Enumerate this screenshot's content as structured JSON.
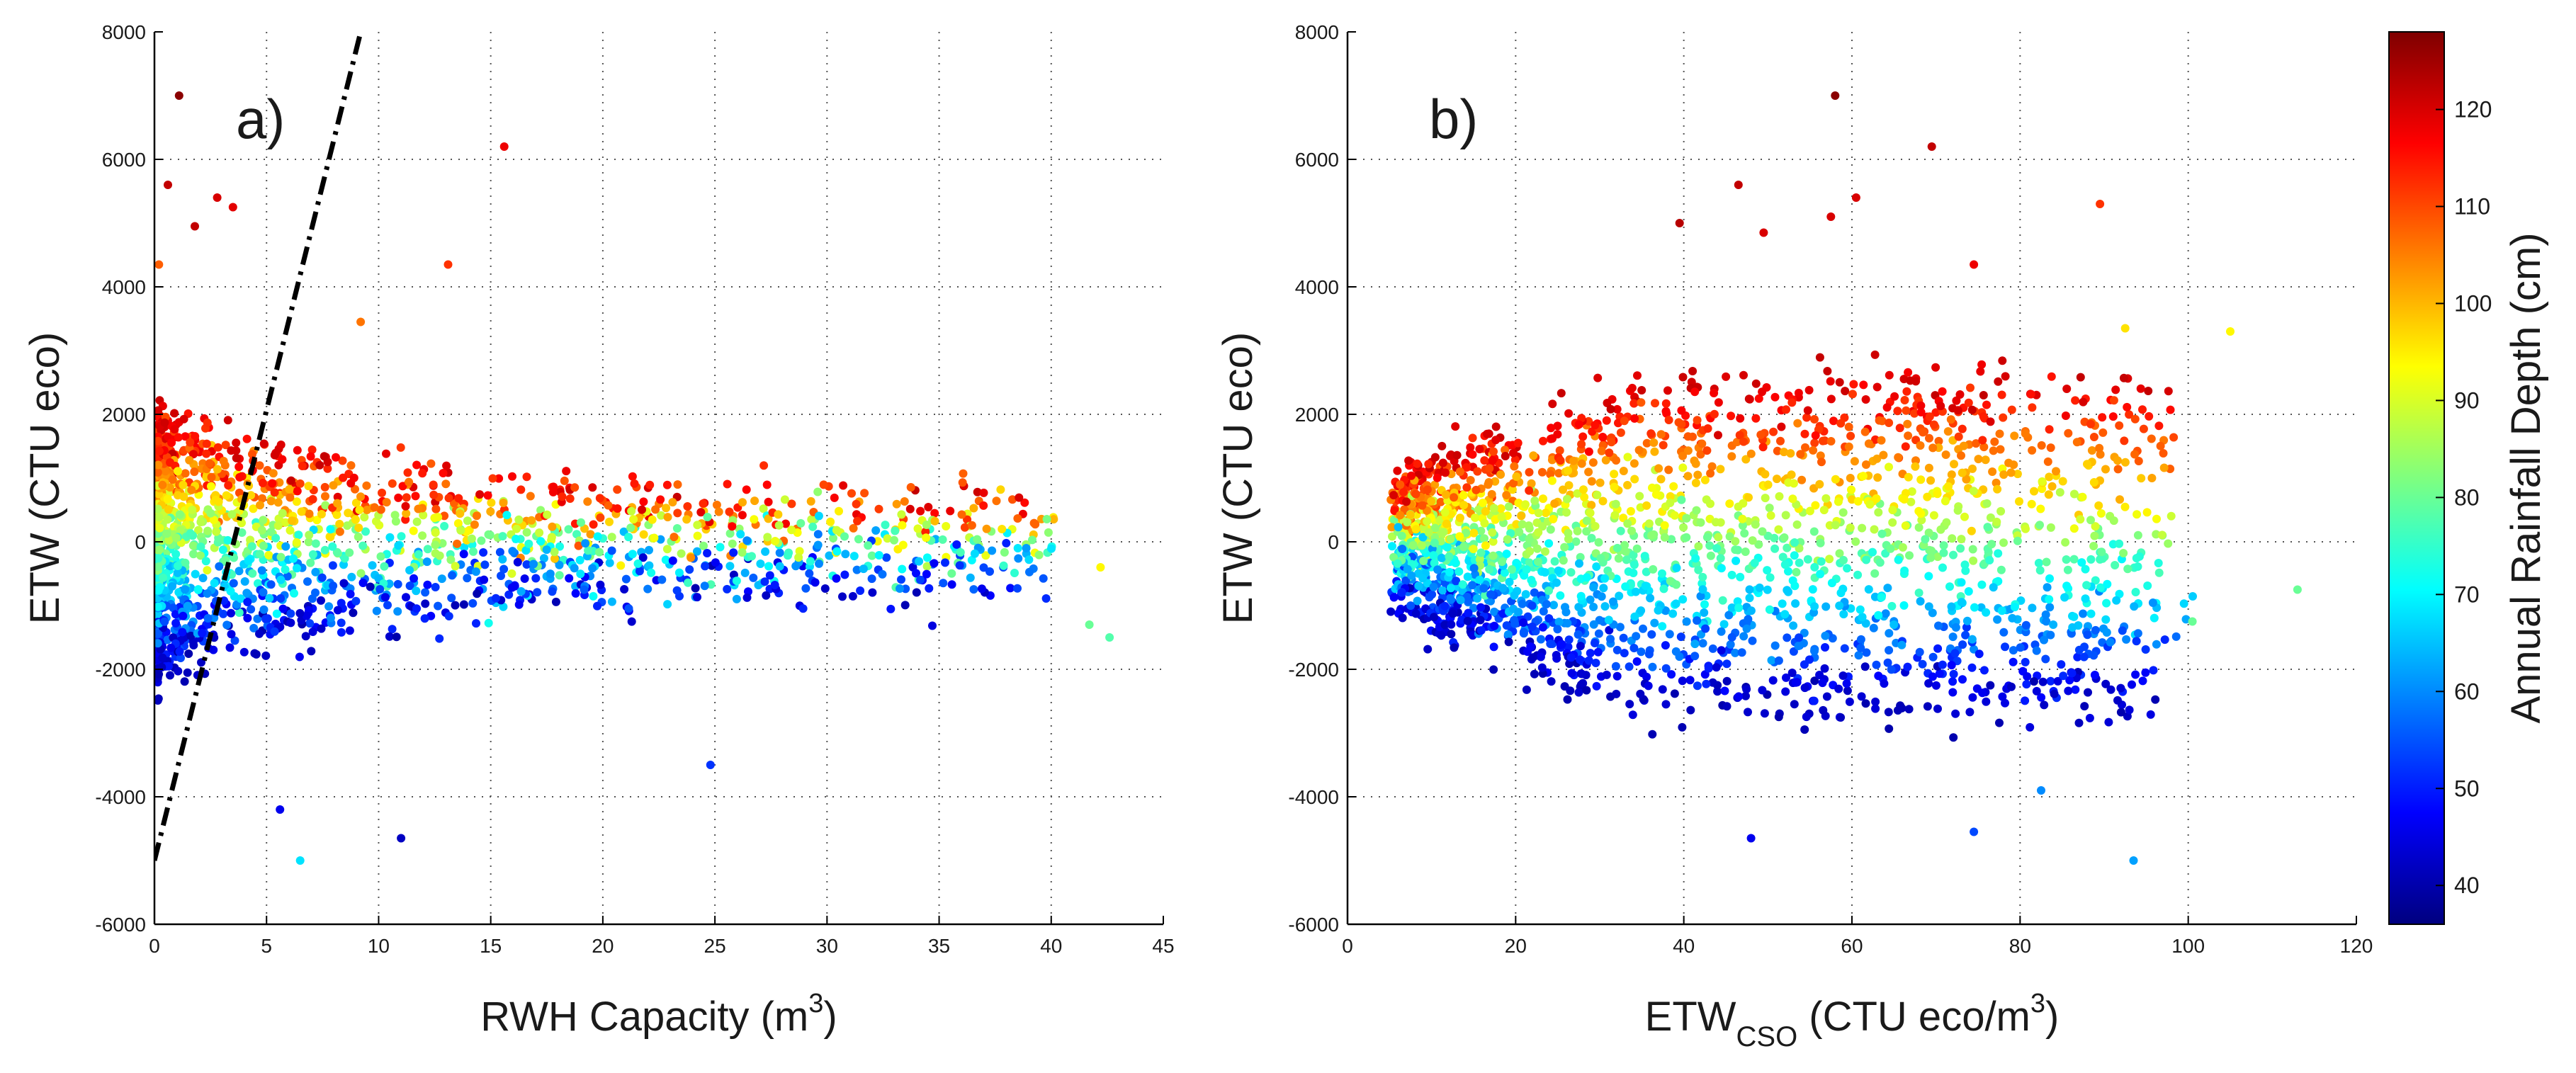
{
  "chart_data": [
    {
      "type": "scatter",
      "panel_label": "a)",
      "xlabel_main": "RWH Capacity (m",
      "xlabel_sup": "3",
      "xlabel_tail": ")",
      "ylabel": "ETW (CTU eco)",
      "xlim": [
        0,
        45
      ],
      "ylim": [
        -6000,
        8000
      ],
      "xticks": [
        0,
        5,
        10,
        15,
        20,
        25,
        30,
        35,
        40,
        45
      ],
      "yticks": [
        -6000,
        -4000,
        -2000,
        0,
        2000,
        4000,
        6000,
        8000
      ],
      "grid": true,
      "reference_line": {
        "style": "dash-dot",
        "x": [
          0,
          9.2
        ],
        "y": [
          -5000,
          8000
        ]
      },
      "color_variable": "Annual Rainfall Depth (cm)",
      "n_points": 1800,
      "highlight_points": [
        {
          "x": 1.1,
          "y": 7000,
          "c": 127
        },
        {
          "x": 0.6,
          "y": 5600,
          "c": 122
        },
        {
          "x": 2.8,
          "y": 5400,
          "c": 120
        },
        {
          "x": 3.5,
          "y": 5250,
          "c": 119
        },
        {
          "x": 1.8,
          "y": 4950,
          "c": 122
        },
        {
          "x": 15.6,
          "y": 6200,
          "c": 118
        },
        {
          "x": 13.1,
          "y": 4350,
          "c": 112
        },
        {
          "x": 0.2,
          "y": 4350,
          "c": 108
        },
        {
          "x": 9.2,
          "y": 3450,
          "c": 106
        },
        {
          "x": 42.2,
          "y": -400,
          "c": 94
        },
        {
          "x": 37.8,
          "y": 200,
          "c": 96
        },
        {
          "x": 42.6,
          "y": -1500,
          "c": 78
        },
        {
          "x": 41.7,
          "y": -1300,
          "c": 80
        },
        {
          "x": 6.5,
          "y": -5000,
          "c": 68
        },
        {
          "x": 11.0,
          "y": -4650,
          "c": 42
        },
        {
          "x": 5.6,
          "y": -4200,
          "c": 46
        },
        {
          "x": 24.8,
          "y": -3500,
          "c": 52
        }
      ]
    },
    {
      "type": "scatter",
      "panel_label": "b)",
      "xlabel_main": "ETW",
      "xlabel_sub": "CSO",
      "xlabel_tail": " (CTU eco/m",
      "xlabel_sup": "3",
      "xlabel_close": ")",
      "ylabel": "ETW (CTU eco)",
      "xlim": [
        0,
        120
      ],
      "ylim": [
        -6000,
        8000
      ],
      "xticks": [
        0,
        20,
        40,
        60,
        80,
        100,
        120
      ],
      "yticks": [
        -6000,
        -4000,
        -2000,
        0,
        2000,
        4000,
        6000,
        8000
      ],
      "grid": true,
      "color_variable": "Annual Rainfall Depth (cm)",
      "n_points": 2400,
      "highlight_points": [
        {
          "x": 58,
          "y": 7000,
          "c": 127
        },
        {
          "x": 69.5,
          "y": 6200,
          "c": 122
        },
        {
          "x": 60.5,
          "y": 5400,
          "c": 120
        },
        {
          "x": 57.5,
          "y": 5100,
          "c": 120
        },
        {
          "x": 89.5,
          "y": 5300,
          "c": 112
        },
        {
          "x": 39.5,
          "y": 5000,
          "c": 123
        },
        {
          "x": 49.5,
          "y": 4850,
          "c": 120
        },
        {
          "x": 46.5,
          "y": 5600,
          "c": 122
        },
        {
          "x": 74.5,
          "y": 4350,
          "c": 118
        },
        {
          "x": 92.5,
          "y": 3350,
          "c": 96
        },
        {
          "x": 105,
          "y": 3300,
          "c": 94
        },
        {
          "x": 113,
          "y": -750,
          "c": 80
        },
        {
          "x": 100.5,
          "y": -1250,
          "c": 80
        },
        {
          "x": 93.5,
          "y": -5000,
          "c": 62
        },
        {
          "x": 48,
          "y": -4650,
          "c": 46
        },
        {
          "x": 74.5,
          "y": -4550,
          "c": 54
        },
        {
          "x": 82.5,
          "y": -3900,
          "c": 60
        }
      ]
    }
  ],
  "colorbar": {
    "label": "Annual Rainfall Depth (cm)",
    "min": 36,
    "max": 128,
    "ticks": [
      40,
      50,
      60,
      70,
      80,
      90,
      100,
      110,
      120
    ],
    "colormap": "jet",
    "stops": [
      "#00007f",
      "#0000ff",
      "#007fff",
      "#00ffff",
      "#7fff7f",
      "#ffff00",
      "#ff7f00",
      "#ff0000",
      "#7f0000"
    ]
  }
}
